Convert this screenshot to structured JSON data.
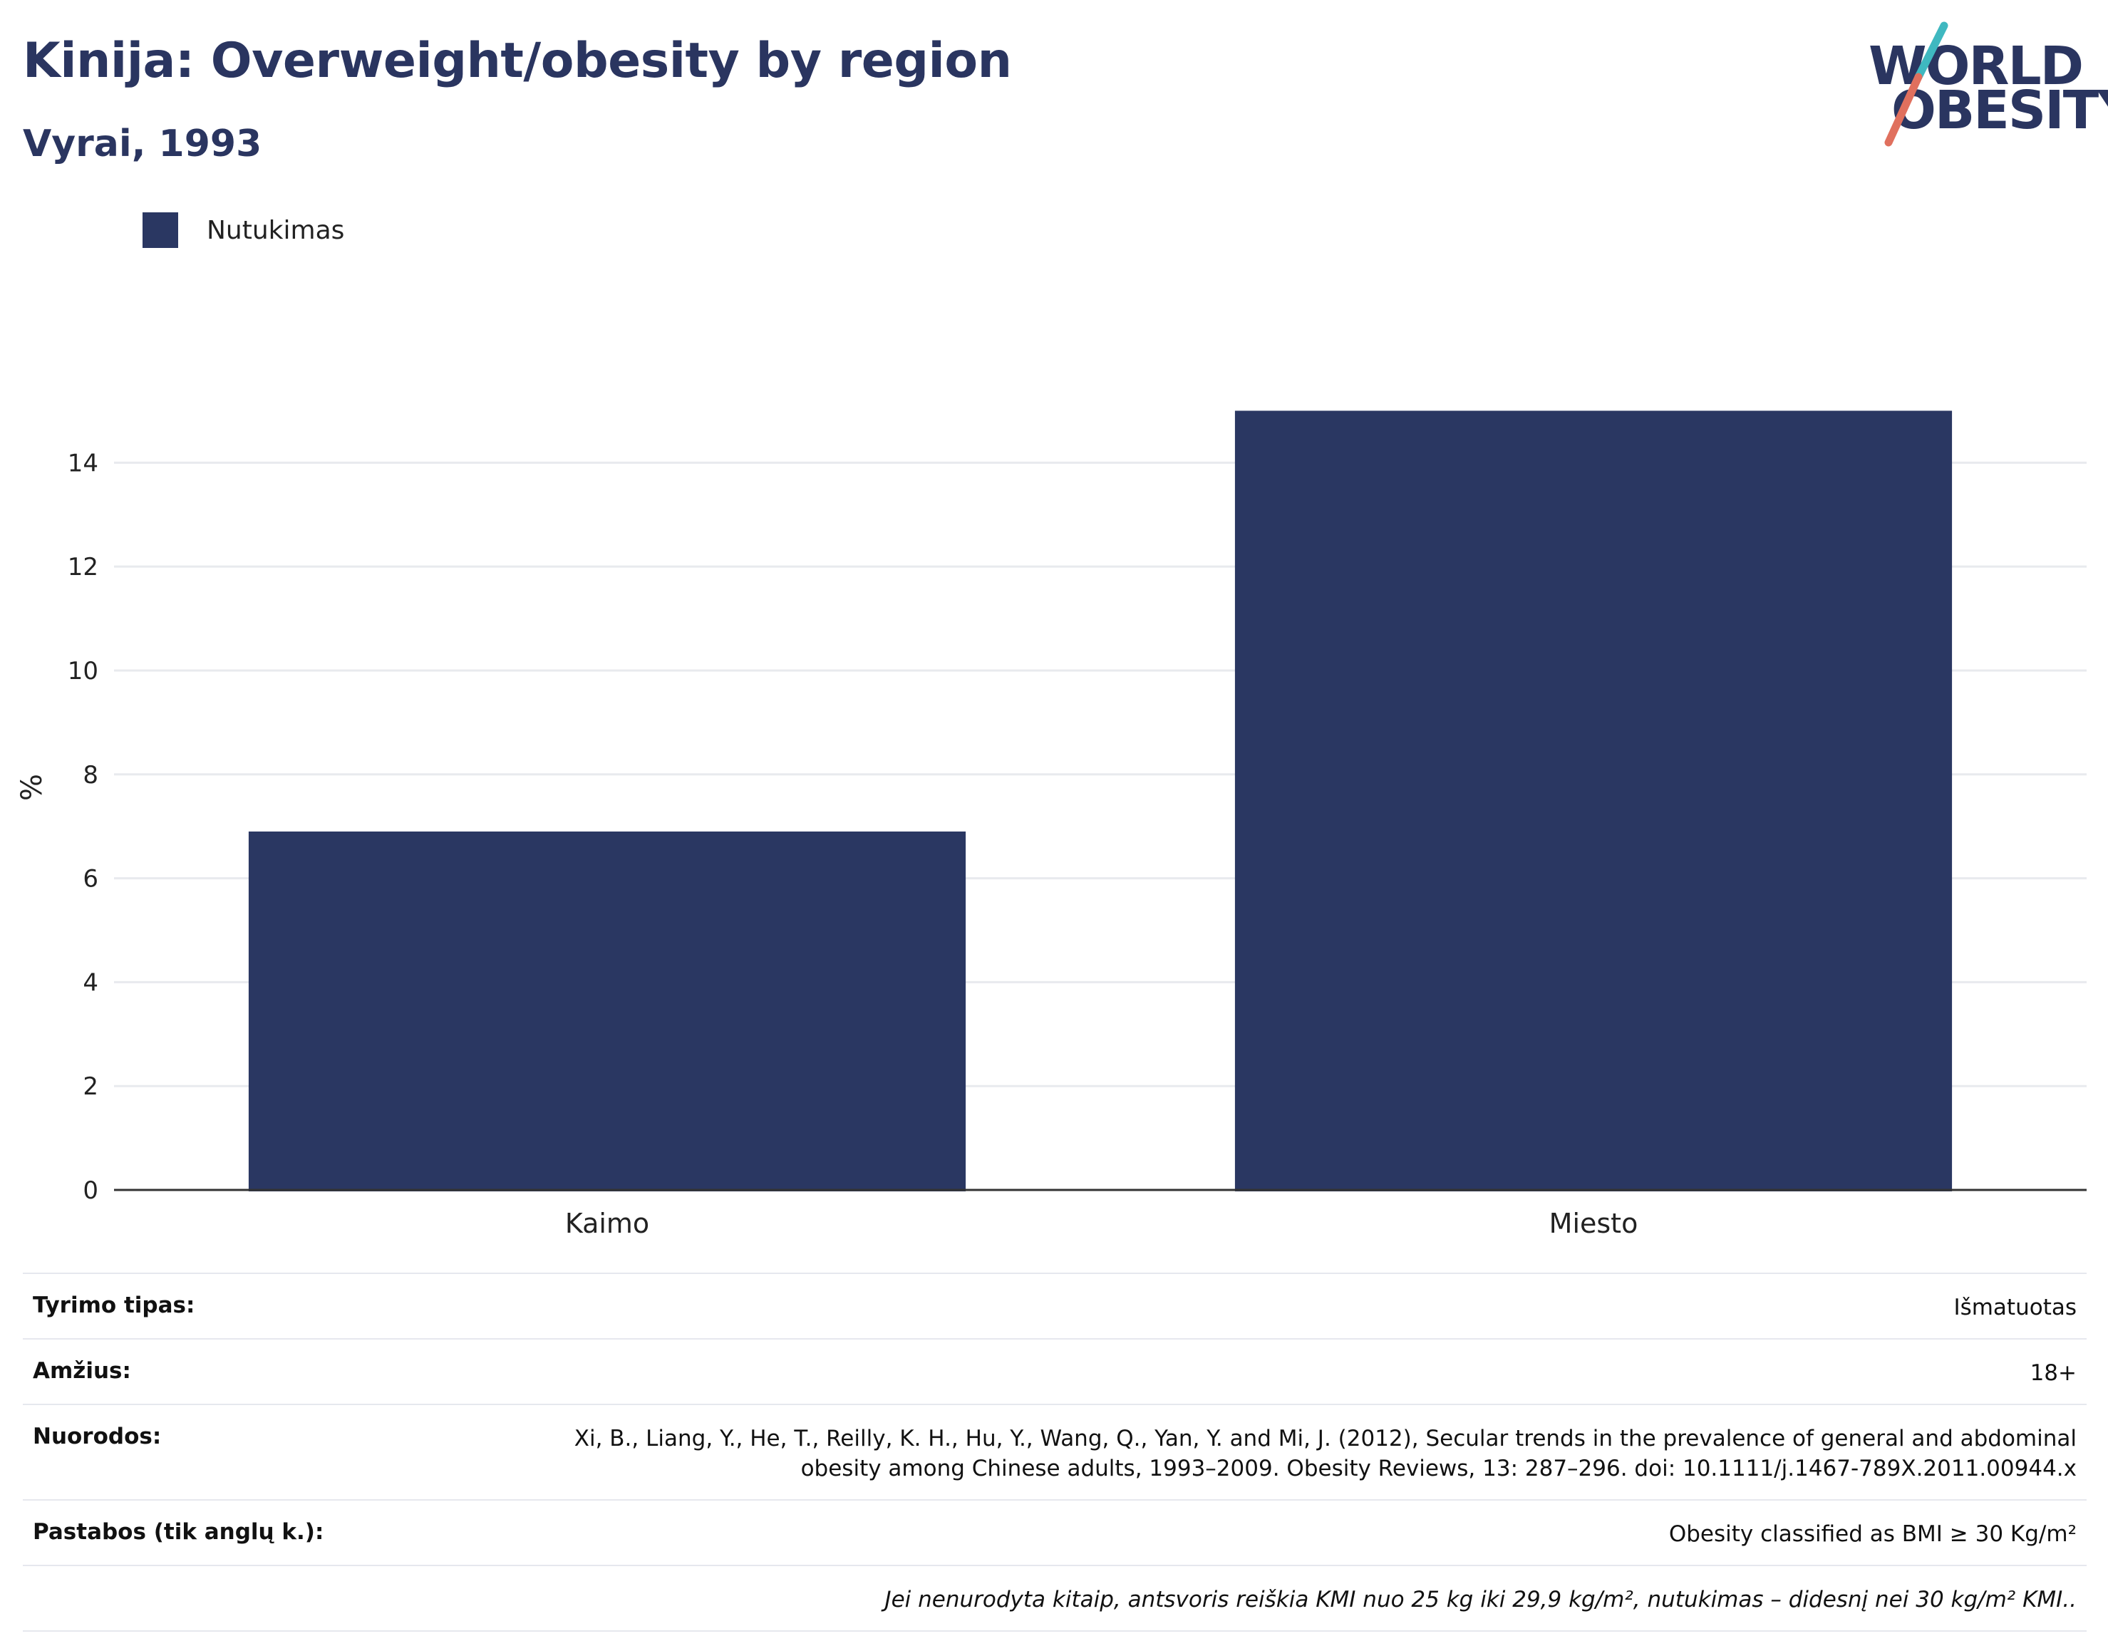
{
  "header": {
    "title": "Kinija: Overweight/obesity by region",
    "subtitle": "Vyrai, 1993"
  },
  "logo": {
    "line1": "WORLD",
    "line2": "OBESITY",
    "colors": {
      "text": "#2a3560",
      "slash_top": "#3fb8c0",
      "slash_bottom": "#e0705e"
    }
  },
  "legend": {
    "items": [
      {
        "label": "Nutukimas",
        "color": "#2a3762"
      }
    ]
  },
  "chart_data": {
    "type": "bar",
    "categories": [
      "Kaimo",
      "Miesto"
    ],
    "series": [
      {
        "name": "Nutukimas",
        "values": [
          6.9,
          15.0
        ],
        "color": "#2a3762"
      }
    ],
    "ylabel": "%",
    "ylim": [
      0,
      15.5
    ],
    "yticks": [
      0,
      2,
      4,
      6,
      8,
      10,
      12,
      14
    ],
    "grid": true,
    "legend_position": "top-left"
  },
  "info": {
    "rows": [
      {
        "label": "Tyrimo tipas:",
        "value": "Išmatuotas"
      },
      {
        "label": "Amžius:",
        "value": "18+"
      },
      {
        "label": "Nuorodos:",
        "value": "Xi, B., Liang, Y., He, T., Reilly, K. H., Hu, Y., Wang, Q., Yan, Y. and Mi, J. (2012), Secular trends in the prevalence of general and abdominal obesity among Chinese adults, 1993–2009. Obesity Reviews, 13: 287–296. doi: 10.1111/j.1467-789X.2011.00944.x"
      },
      {
        "label": "Pastabos (tik anglų k.):",
        "value": "Obesity classified as BMI ≥ 30 Kg/m²"
      }
    ],
    "footnote": "Jei nenurodyta kitaip, antsvoris reiškia KMI nuo 25 kg iki 29,9 kg/m², nutukimas – didesnį nei 30 kg/m² KMI.."
  }
}
